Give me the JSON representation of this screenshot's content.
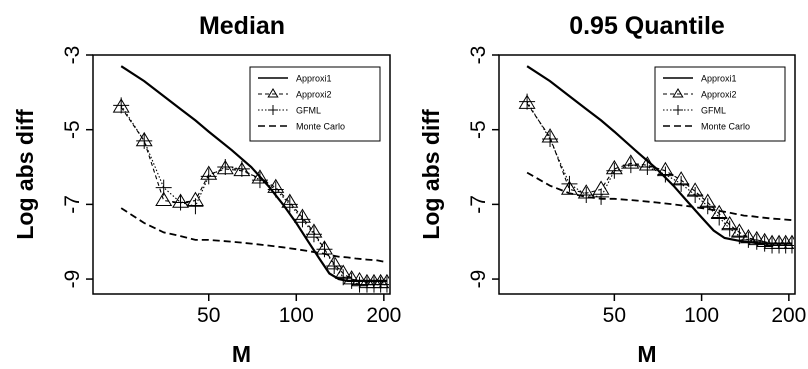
{
  "chart_data": [
    {
      "type": "line",
      "title": "Median",
      "xlabel": "M",
      "ylabel": "Log abs diff",
      "x_scale": "log",
      "xlim": [
        20,
        210
      ],
      "ylim": [
        -9.4,
        -3
      ],
      "x_ticks": [
        50,
        100,
        200
      ],
      "y_ticks": [
        -3,
        -5,
        -7,
        -9
      ],
      "grid": false,
      "legend_position": "top-right",
      "series": [
        {
          "name": "Approxi1",
          "style": "solid",
          "x": [
            25,
            30,
            35,
            40,
            45,
            50,
            60,
            70,
            80,
            90,
            100,
            110,
            120,
            130,
            140,
            150,
            160,
            175,
            190,
            205
          ],
          "y": [
            -3.3,
            -3.7,
            -4.1,
            -4.45,
            -4.75,
            -5.05,
            -5.55,
            -6.0,
            -6.5,
            -7.0,
            -7.5,
            -8.0,
            -8.45,
            -8.85,
            -9.0,
            -9.05,
            -9.05,
            -9.05,
            -9.05,
            -9.05
          ]
        },
        {
          "name": "Approxi2",
          "style": "dashed-triangle",
          "x": [
            25,
            30,
            35,
            40,
            45,
            50,
            57,
            65,
            75,
            85,
            95,
            105,
            115,
            125,
            135,
            145,
            155,
            165,
            175,
            185,
            195,
            205
          ],
          "y": [
            -4.4,
            -5.3,
            -6.9,
            -6.95,
            -6.9,
            -6.2,
            -6.05,
            -6.1,
            -6.3,
            -6.55,
            -6.95,
            -7.35,
            -7.75,
            -8.2,
            -8.6,
            -8.85,
            -9.0,
            -9.05,
            -9.1,
            -9.1,
            -9.1,
            -9.1
          ]
        },
        {
          "name": "GFML",
          "style": "dotted-plus",
          "x": [
            25,
            30,
            35,
            40,
            45,
            50,
            57,
            65,
            75,
            85,
            95,
            105,
            115,
            125,
            135,
            145,
            155,
            165,
            175,
            185,
            195,
            205
          ],
          "y": [
            -4.35,
            -5.3,
            -6.55,
            -6.95,
            -7.05,
            -6.25,
            -6.0,
            -6.05,
            -6.35,
            -6.6,
            -7.0,
            -7.4,
            -7.8,
            -8.2,
            -8.65,
            -8.95,
            -9.05,
            -9.15,
            -9.15,
            -9.15,
            -9.15,
            -9.15
          ]
        },
        {
          "name": "Monte Carlo",
          "style": "dashed",
          "x": [
            25,
            30,
            35,
            40,
            45,
            50,
            60,
            70,
            80,
            90,
            100,
            110,
            120,
            130,
            140,
            150,
            160,
            175,
            190,
            205
          ],
          "y": [
            -7.1,
            -7.5,
            -7.75,
            -7.85,
            -7.95,
            -7.95,
            -8.0,
            -8.05,
            -8.1,
            -8.15,
            -8.2,
            -8.25,
            -8.3,
            -8.35,
            -8.4,
            -8.42,
            -8.45,
            -8.48,
            -8.5,
            -8.55
          ]
        }
      ]
    },
    {
      "type": "line",
      "title": "0.95 Quantile",
      "xlabel": "M",
      "ylabel": "Log abs diff",
      "x_scale": "log",
      "xlim": [
        20,
        210
      ],
      "ylim": [
        -9.4,
        -3
      ],
      "x_ticks": [
        50,
        100,
        200
      ],
      "y_ticks": [
        -3,
        -5,
        -7,
        -9
      ],
      "grid": false,
      "legend_position": "top-right",
      "series": [
        {
          "name": "Approxi1",
          "style": "solid",
          "x": [
            25,
            30,
            35,
            40,
            45,
            50,
            60,
            70,
            80,
            90,
            100,
            110,
            120,
            130,
            140,
            150,
            160,
            175,
            190,
            205
          ],
          "y": [
            -3.3,
            -3.7,
            -4.1,
            -4.45,
            -4.75,
            -5.05,
            -5.6,
            -6.05,
            -6.5,
            -6.95,
            -7.35,
            -7.7,
            -7.9,
            -7.95,
            -8.0,
            -8.02,
            -8.05,
            -8.05,
            -8.05,
            -8.05
          ]
        },
        {
          "name": "Approxi2",
          "style": "dashed-triangle",
          "x": [
            25,
            30,
            35,
            40,
            45,
            50,
            57,
            65,
            75,
            85,
            95,
            105,
            115,
            125,
            135,
            145,
            155,
            165,
            175,
            185,
            195,
            205
          ],
          "y": [
            -4.3,
            -5.2,
            -6.6,
            -6.7,
            -6.6,
            -6.05,
            -5.9,
            -5.95,
            -6.1,
            -6.35,
            -6.65,
            -6.95,
            -7.25,
            -7.55,
            -7.75,
            -7.9,
            -7.95,
            -8.0,
            -8.05,
            -8.05,
            -8.05,
            -8.05
          ]
        },
        {
          "name": "GFML",
          "style": "dotted-plus",
          "x": [
            25,
            30,
            35,
            40,
            45,
            50,
            57,
            65,
            75,
            85,
            95,
            105,
            115,
            125,
            135,
            145,
            155,
            165,
            175,
            185,
            195,
            205
          ],
          "y": [
            -4.25,
            -5.25,
            -6.45,
            -6.75,
            -6.8,
            -6.1,
            -5.95,
            -6.0,
            -6.2,
            -6.45,
            -6.75,
            -7.05,
            -7.35,
            -7.65,
            -7.85,
            -7.95,
            -8.0,
            -8.05,
            -8.1,
            -8.1,
            -8.1,
            -8.1
          ]
        },
        {
          "name": "Monte Carlo",
          "style": "dashed",
          "x": [
            25,
            30,
            35,
            40,
            45,
            50,
            60,
            70,
            80,
            90,
            100,
            110,
            120,
            130,
            140,
            150,
            160,
            175,
            190,
            205
          ],
          "y": [
            -6.15,
            -6.5,
            -6.7,
            -6.8,
            -6.85,
            -6.85,
            -6.9,
            -6.95,
            -7.0,
            -7.05,
            -7.1,
            -7.15,
            -7.2,
            -7.25,
            -7.3,
            -7.32,
            -7.35,
            -7.38,
            -7.4,
            -7.42
          ]
        }
      ]
    }
  ]
}
